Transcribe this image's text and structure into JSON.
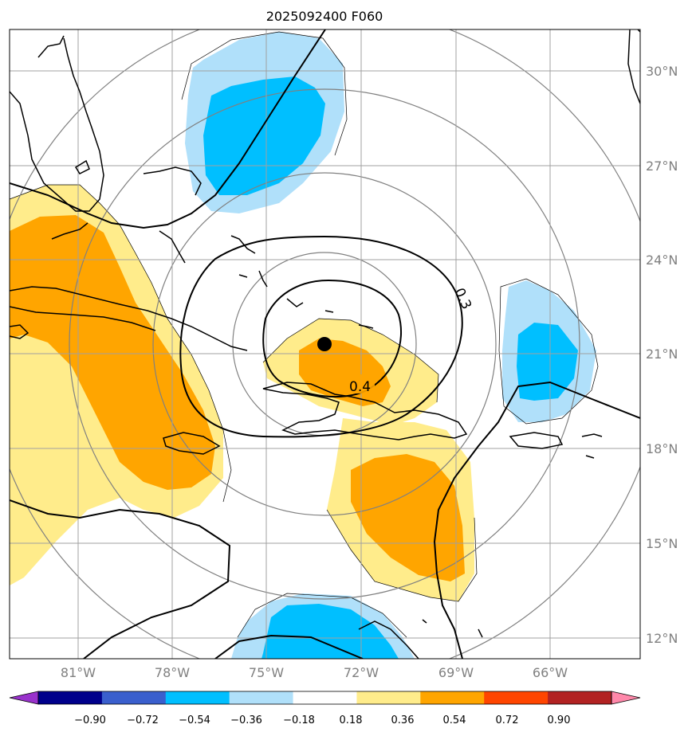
{
  "title": "2025092400 F060",
  "map": {
    "lat_ticks": [
      "30°N",
      "27°N",
      "24°N",
      "21°N",
      "18°N",
      "15°N",
      "12°N"
    ],
    "lon_ticks": [
      "81°W",
      "78°W",
      "75°W",
      "72°W",
      "69°W",
      "66°W"
    ],
    "contour_labels": [
      "0.3",
      "0.4"
    ],
    "center_marker": "storm-center"
  },
  "colorbar": {
    "labels": [
      "−0.90",
      "−0.72",
      "−0.54",
      "−0.36",
      "−0.18",
      "0.18",
      "0.36",
      "0.54",
      "0.72",
      "0.90"
    ],
    "colors": [
      "#9932cc",
      "#00008b",
      "#3a5fcd",
      "#00bfff",
      "#b0e0fa",
      "#ffffff",
      "#ffec8b",
      "#ffa500",
      "#ff4500",
      "#b22222",
      "#ff88aa"
    ]
  },
  "palette": {
    "neg1": "#b0e0fa",
    "neg2": "#00bfff",
    "pos1": "#ffec8b",
    "pos2": "#ffa500",
    "grid": "#a0a0a0",
    "rings": "#808080"
  }
}
